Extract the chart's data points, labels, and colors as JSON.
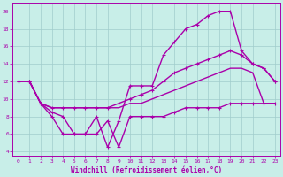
{
  "xlabel": "Windchill (Refroidissement éolien,°C)",
  "bg_color": "#c8eee8",
  "grid_color": "#a0cccc",
  "line_color": "#aa00aa",
  "ylim": [
    3.5,
    21
  ],
  "xlim": [
    -0.5,
    23.5
  ],
  "yticks": [
    4,
    6,
    8,
    10,
    12,
    14,
    16,
    18,
    20
  ],
  "xticks": [
    0,
    1,
    2,
    3,
    4,
    5,
    6,
    7,
    8,
    9,
    10,
    11,
    12,
    13,
    14,
    15,
    16,
    17,
    18,
    19,
    20,
    21,
    22,
    23
  ],
  "line_spiky_x": [
    0,
    1,
    2,
    3,
    4,
    5,
    6,
    7,
    8,
    9,
    10,
    11,
    12,
    13,
    14,
    15,
    16,
    17,
    18,
    19,
    20,
    21,
    22,
    23
  ],
  "line_spiky_y": [
    12,
    12,
    9.5,
    8,
    6,
    6,
    6,
    8,
    4.5,
    7.5,
    11.5,
    11.5,
    11.5,
    15,
    16.5,
    18,
    18.5,
    19.5,
    20,
    20,
    15.5,
    14,
    13.5,
    12
  ],
  "line_upper_x": [
    0,
    1,
    2,
    3,
    4,
    5,
    6,
    7,
    8,
    9,
    10,
    11,
    12,
    13,
    14,
    15,
    16,
    17,
    18,
    19,
    20,
    21,
    22,
    23
  ],
  "line_upper_y": [
    12,
    12,
    9.5,
    9,
    9,
    9,
    9,
    9,
    9,
    9.5,
    10,
    10.5,
    11,
    12,
    13,
    13.5,
    14,
    14.5,
    15,
    15.5,
    15,
    14,
    13.5,
    12
  ],
  "line_lower_x": [
    0,
    1,
    2,
    3,
    4,
    5,
    6,
    7,
    8,
    9,
    10,
    11,
    12,
    13,
    14,
    15,
    16,
    17,
    18,
    19,
    20,
    21,
    22,
    23
  ],
  "line_lower_y": [
    12,
    12,
    9.5,
    9,
    9,
    9,
    9,
    9,
    9,
    9,
    9.5,
    9.5,
    10,
    10.5,
    11,
    11.5,
    12,
    12.5,
    13,
    13.5,
    13.5,
    13,
    9.5,
    9.5
  ],
  "line_bottom_x": [
    1,
    2,
    3,
    4,
    5,
    6,
    7,
    8,
    9,
    10,
    11,
    12,
    13,
    14,
    15,
    16,
    17,
    18,
    19,
    20,
    21,
    22,
    23
  ],
  "line_bottom_y": [
    12,
    9.5,
    8.5,
    8,
    6,
    6,
    6,
    7.5,
    4.5,
    8,
    8,
    8,
    8,
    8.5,
    9,
    9,
    9,
    9,
    9.5,
    9.5,
    9.5,
    9.5,
    9.5
  ]
}
